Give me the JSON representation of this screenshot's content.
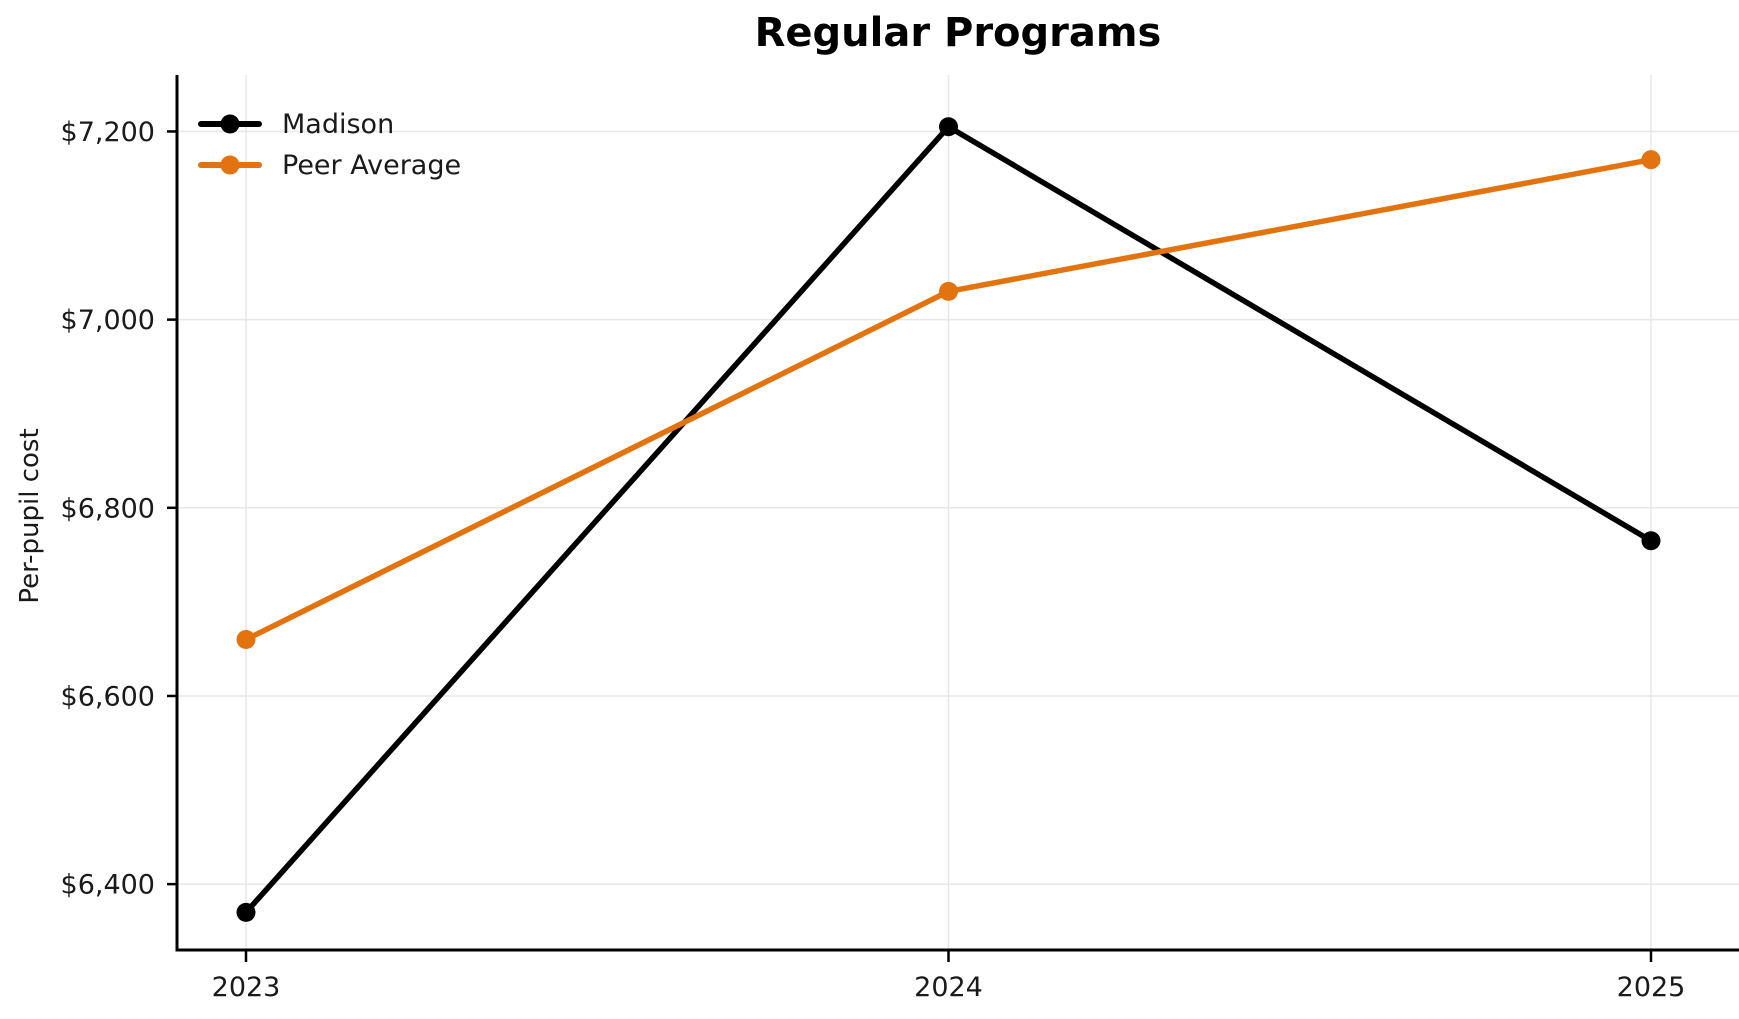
{
  "chart_data": {
    "type": "line",
    "title": "Regular Programs",
    "xlabel": "",
    "ylabel": "Per-pupil cost",
    "categories": [
      "2023",
      "2024",
      "2025"
    ],
    "series": [
      {
        "name": "Madison",
        "color": "#000000",
        "values": [
          6370,
          7205,
          6765
        ]
      },
      {
        "name": "Peer Average",
        "color": "#E2730E",
        "values": [
          6660,
          7030,
          7170
        ]
      }
    ],
    "yticks": [
      {
        "value": 6400,
        "label": "$6,400"
      },
      {
        "value": 6600,
        "label": "$6,600"
      },
      {
        "value": 6800,
        "label": "$6,800"
      },
      {
        "value": 7000,
        "label": "$7,000"
      },
      {
        "value": 7200,
        "label": "$7,200"
      }
    ],
    "ylim": [
      6330,
      7260
    ],
    "grid": true,
    "legend_position": "upper-left"
  }
}
